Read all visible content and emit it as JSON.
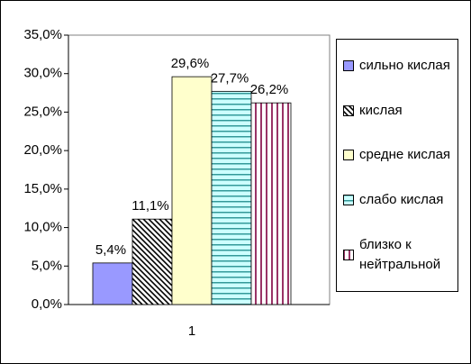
{
  "chart_data": {
    "type": "bar",
    "categories": [
      "1"
    ],
    "series": [
      {
        "name": "сильно кислая",
        "color": "#9999ff",
        "pattern": "solid",
        "values": [
          5.4
        ],
        "value_labels": [
          "5,4%"
        ]
      },
      {
        "name": "кислая",
        "color": "#000000",
        "pattern": "diagonal",
        "background": "#ffffff",
        "values": [
          11.1
        ],
        "value_labels": [
          "11,1%"
        ]
      },
      {
        "name": "средне кислая",
        "color": "#ffffcc",
        "pattern": "solid",
        "values": [
          29.6
        ],
        "value_labels": [
          "29,6%"
        ]
      },
      {
        "name": "слабо кислая",
        "color": "#339999",
        "pattern": "horizontal",
        "background": "#ccffff",
        "values": [
          27.7
        ],
        "value_labels": [
          "27,7%"
        ]
      },
      {
        "name": "близко к нейтральной",
        "color": "#993366",
        "pattern": "vertical",
        "background": "#ffffff",
        "values": [
          26.2
        ],
        "value_labels": [
          "26,2%"
        ]
      }
    ],
    "ylim": [
      0,
      35
    ],
    "yticks": [
      {
        "value": 0,
        "label": "0,0%"
      },
      {
        "value": 5,
        "label": "5,0%"
      },
      {
        "value": 10,
        "label": "10,0%"
      },
      {
        "value": 15,
        "label": "15,0%"
      },
      {
        "value": 20,
        "label": "20,0%"
      },
      {
        "value": 25,
        "label": "25,0%"
      },
      {
        "value": 30,
        "label": "30,0%"
      },
      {
        "value": 35,
        "label": "35,0%"
      }
    ],
    "legend": "right"
  }
}
